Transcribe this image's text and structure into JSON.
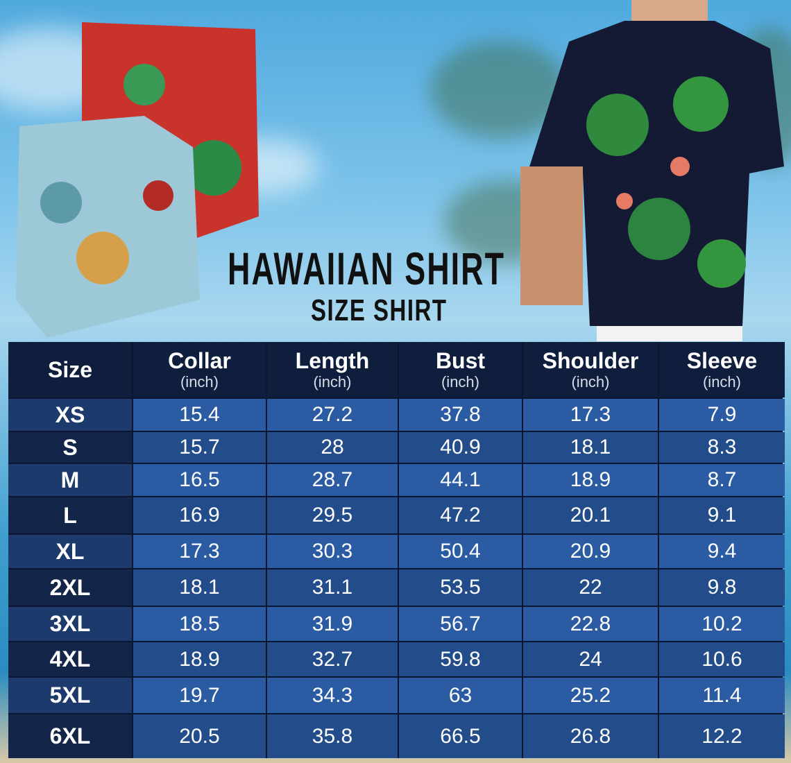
{
  "title": "HAWAIIAN SHIRT",
  "subtitle": "SIZE SHIRT",
  "colors": {
    "header": "#0f1e3d",
    "row_light": "#2b5ca3",
    "row_dark": "#234c8b",
    "text": "#ffffff"
  },
  "table": {
    "headers": [
      {
        "label": "Size",
        "unit": ""
      },
      {
        "label": "Collar",
        "unit": "(inch)"
      },
      {
        "label": "Length",
        "unit": "(inch)"
      },
      {
        "label": "Bust",
        "unit": "(inch)"
      },
      {
        "label": "Shoulder",
        "unit": "(inch)"
      },
      {
        "label": "Sleeve",
        "unit": "(inch)"
      }
    ],
    "rows": [
      [
        "XS",
        "15.4",
        "27.2",
        "37.8",
        "17.3",
        "7.9"
      ],
      [
        "S",
        "15.7",
        "28",
        "40.9",
        "18.1",
        "8.3"
      ],
      [
        "M",
        "16.5",
        "28.7",
        "44.1",
        "18.9",
        "8.7"
      ],
      [
        "L",
        "16.9",
        "29.5",
        "47.2",
        "20.1",
        "9.1"
      ],
      [
        "XL",
        "17.3",
        "30.3",
        "50.4",
        "20.9",
        "9.4"
      ],
      [
        "2XL",
        "18.1",
        "31.1",
        "53.5",
        "22",
        "9.8"
      ],
      [
        "3XL",
        "18.5",
        "31.9",
        "56.7",
        "22.8",
        "10.2"
      ],
      [
        "4XL",
        "18.9",
        "32.7",
        "59.8",
        "24",
        "10.6"
      ],
      [
        "5XL",
        "19.7",
        "34.3",
        "63",
        "25.2",
        "11.4"
      ],
      [
        "6XL",
        "20.5",
        "35.8",
        "66.5",
        "26.8",
        "12.2"
      ]
    ]
  }
}
